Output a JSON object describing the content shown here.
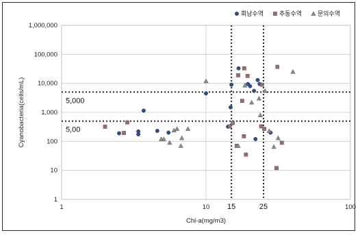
{
  "chart_data": {
    "type": "scatter",
    "xlabel": "Chl-a(mg/m3)",
    "ylabel": "Cyanobacteria(cells/mL)",
    "x_scale": "log",
    "y_scale": "log",
    "xlim": [
      1,
      100
    ],
    "ylim": [
      1,
      1000000
    ],
    "x_ticks": [
      "1",
      "10",
      "100"
    ],
    "y_ticks": [
      "1",
      "10",
      "100",
      "1,000",
      "10,000",
      "100,000",
      "1,000,000"
    ],
    "grid": true,
    "legend_position": "top-right",
    "threshold_lines": [
      {
        "axis": "y",
        "value": 5000,
        "label": "5,000"
      },
      {
        "axis": "y",
        "value": 500,
        "label": "5,00"
      },
      {
        "axis": "x",
        "value": 15,
        "label": "15"
      },
      {
        "axis": "x",
        "value": 25,
        "label": "25"
      }
    ],
    "series": [
      {
        "name": "회남수역",
        "marker": "circle",
        "color": "#2f4d8a",
        "points": [
          [
            2.5,
            190
          ],
          [
            3.4,
            220
          ],
          [
            3.4,
            175
          ],
          [
            3.7,
            1150
          ],
          [
            4.6,
            230
          ],
          [
            5.5,
            200
          ],
          [
            10.0,
            4500
          ],
          [
            14.2,
            320
          ],
          [
            14.8,
            1500
          ],
          [
            15.0,
            9000
          ],
          [
            16.8,
            33000
          ],
          [
            19.5,
            9500
          ],
          [
            20.2,
            8000
          ],
          [
            21.5,
            5500
          ],
          [
            22.0,
            120
          ],
          [
            22.8,
            13000
          ],
          [
            23.5,
            9500
          ],
          [
            28.0,
            200
          ]
        ]
      },
      {
        "name": "추동수역",
        "marker": "square",
        "color": "#9a6d6d",
        "points": [
          [
            2.0,
            320
          ],
          [
            2.7,
            195
          ],
          [
            2.85,
            450
          ],
          [
            14.6,
            330
          ],
          [
            15.3,
            430
          ],
          [
            16.3,
            70
          ],
          [
            16.7,
            19000
          ],
          [
            17.8,
            2500
          ],
          [
            18.3,
            150
          ],
          [
            18.4,
            33000
          ],
          [
            18.9,
            35
          ],
          [
            19.4,
            18000
          ],
          [
            24.1,
            330
          ],
          [
            24.4,
            9000
          ],
          [
            25.3,
            270
          ],
          [
            30.8,
            12
          ],
          [
            31.2,
            37000
          ],
          [
            33.5,
            90
          ]
        ]
      },
      {
        "name": "문의수역",
        "marker": "triangle",
        "color": "#8c8c8c",
        "points": [
          [
            4.9,
            120
          ],
          [
            5.1,
            120
          ],
          [
            5.6,
            90
          ],
          [
            6.0,
            240
          ],
          [
            6.3,
            270
          ],
          [
            6.7,
            70
          ],
          [
            6.8,
            130
          ],
          [
            7.5,
            270
          ],
          [
            10.0,
            12000
          ],
          [
            15.2,
            450
          ],
          [
            16.7,
            70
          ],
          [
            18.6,
            8500
          ],
          [
            20.7,
            2200
          ],
          [
            23.3,
            3000
          ],
          [
            23.8,
            800
          ],
          [
            25.6,
            5500
          ],
          [
            27.4,
            230
          ],
          [
            29.5,
            65
          ],
          [
            31.6,
            130
          ],
          [
            40.0,
            25000
          ]
        ]
      }
    ]
  }
}
